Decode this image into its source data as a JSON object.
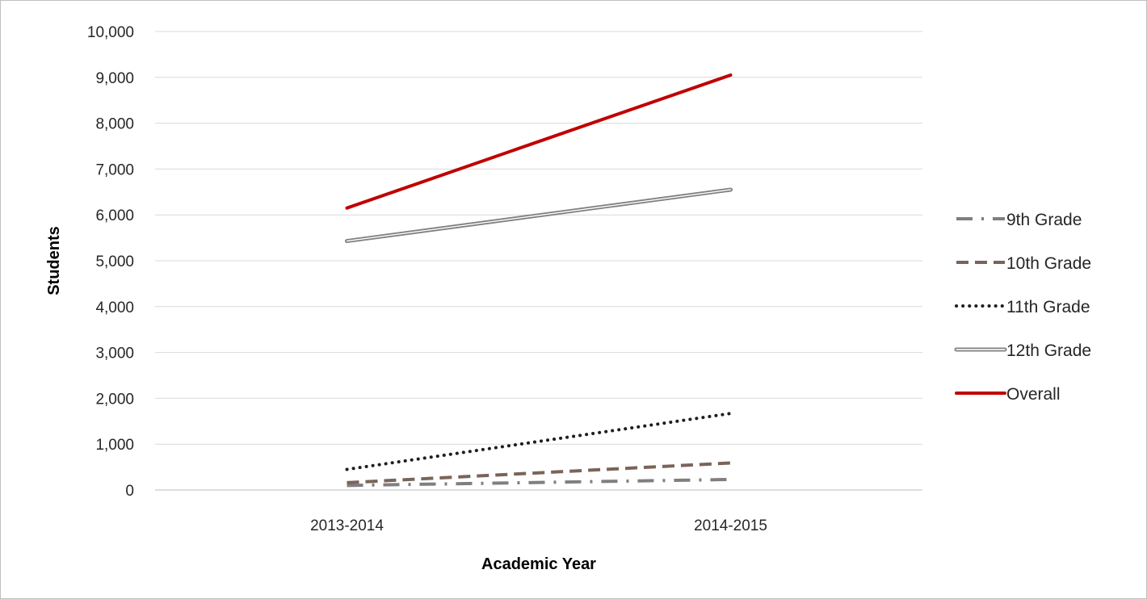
{
  "chart_data": {
    "type": "line",
    "categories": [
      "2013-2014",
      "2014-2015"
    ],
    "xlabel": "Academic Year",
    "ylabel": "Students",
    "ylim": [
      0,
      10000
    ],
    "yticks": [
      "0",
      "1,000",
      "2,000",
      "3,000",
      "4,000",
      "5,000",
      "6,000",
      "7,000",
      "8,000",
      "9,000",
      "10,000"
    ],
    "grid": true,
    "legend_position": "right",
    "series": [
      {
        "name": "9th Grade",
        "values": [
          100,
          230
        ],
        "color": "#7f7f7f",
        "style": "dash-dot"
      },
      {
        "name": "10th Grade",
        "values": [
          160,
          590
        ],
        "color": "#7a6459",
        "style": "dash"
      },
      {
        "name": "11th Grade",
        "values": [
          450,
          1670
        ],
        "color": "#1f1f1f",
        "style": "dot"
      },
      {
        "name": "12th Grade",
        "values": [
          5430,
          6550
        ],
        "color": "#808080",
        "style": "double"
      },
      {
        "name": "Overall",
        "values": [
          6150,
          9050
        ],
        "color": "#c00000",
        "style": "solid"
      }
    ]
  }
}
